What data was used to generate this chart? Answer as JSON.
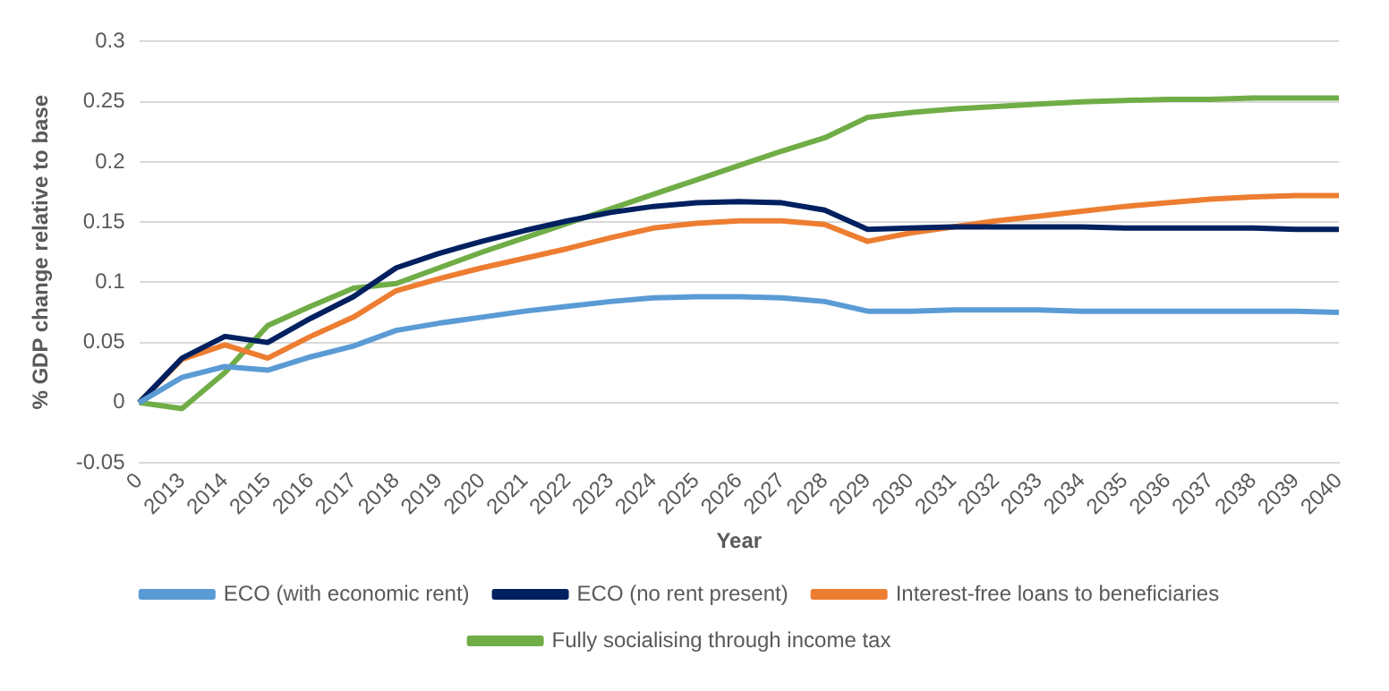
{
  "chart_data": {
    "type": "line",
    "xlabel": "Year",
    "ylabel": "% GDP change relative to base",
    "categories": [
      "0",
      "2013",
      "2014",
      "2015",
      "2016",
      "2017",
      "2018",
      "2019",
      "2020",
      "2021",
      "2022",
      "2023",
      "2024",
      "2025",
      "2026",
      "2027",
      "2028",
      "2029",
      "2030",
      "2031",
      "2032",
      "2033",
      "2034",
      "2035",
      "2036",
      "2037",
      "2038",
      "2039",
      "2040"
    ],
    "series": [
      {
        "name": "ECO (with economic rent)",
        "color": "#5b9bd5",
        "values": [
          0,
          0.021,
          0.03,
          0.027,
          0.038,
          0.047,
          0.06,
          0.066,
          0.071,
          0.076,
          0.08,
          0.084,
          0.087,
          0.088,
          0.088,
          0.087,
          0.084,
          0.076,
          0.076,
          0.077,
          0.077,
          0.077,
          0.076,
          0.076,
          0.076,
          0.076,
          0.076,
          0.076,
          0.075
        ]
      },
      {
        "name": "ECO (no rent present)",
        "color": "#002060",
        "values": [
          0,
          0.037,
          0.055,
          0.05,
          0.07,
          0.088,
          0.112,
          0.124,
          0.134,
          0.143,
          0.151,
          0.158,
          0.163,
          0.166,
          0.167,
          0.166,
          0.16,
          0.144,
          0.145,
          0.146,
          0.146,
          0.146,
          0.146,
          0.145,
          0.145,
          0.145,
          0.145,
          0.144,
          0.144
        ]
      },
      {
        "name": "Interest-free loans to beneficiaries",
        "color": "#ed7d31",
        "values": [
          0,
          0.036,
          0.048,
          0.037,
          0.055,
          0.071,
          0.093,
          0.103,
          0.112,
          0.12,
          0.128,
          0.137,
          0.145,
          0.149,
          0.151,
          0.151,
          0.148,
          0.134,
          0.141,
          0.146,
          0.151,
          0.155,
          0.159,
          0.163,
          0.166,
          0.169,
          0.171,
          0.172,
          0.172
        ]
      },
      {
        "name": "Fully socialising through income tax",
        "color": "#70ad47",
        "values": [
          0,
          -0.005,
          0.025,
          0.064,
          0.08,
          0.095,
          0.099,
          0.112,
          0.125,
          0.137,
          0.149,
          0.161,
          0.173,
          0.185,
          0.197,
          0.209,
          0.22,
          0.237,
          0.241,
          0.244,
          0.246,
          0.248,
          0.25,
          0.251,
          0.252,
          0.252,
          0.253,
          0.253,
          0.253
        ]
      }
    ],
    "ylim": [
      -0.05,
      0.3
    ],
    "yticks": [
      -0.05,
      0,
      0.05,
      0.1,
      0.15,
      0.2,
      0.25,
      0.3
    ],
    "grid": "y",
    "legend": "bottom",
    "marker": "none",
    "line_style": "solid"
  }
}
